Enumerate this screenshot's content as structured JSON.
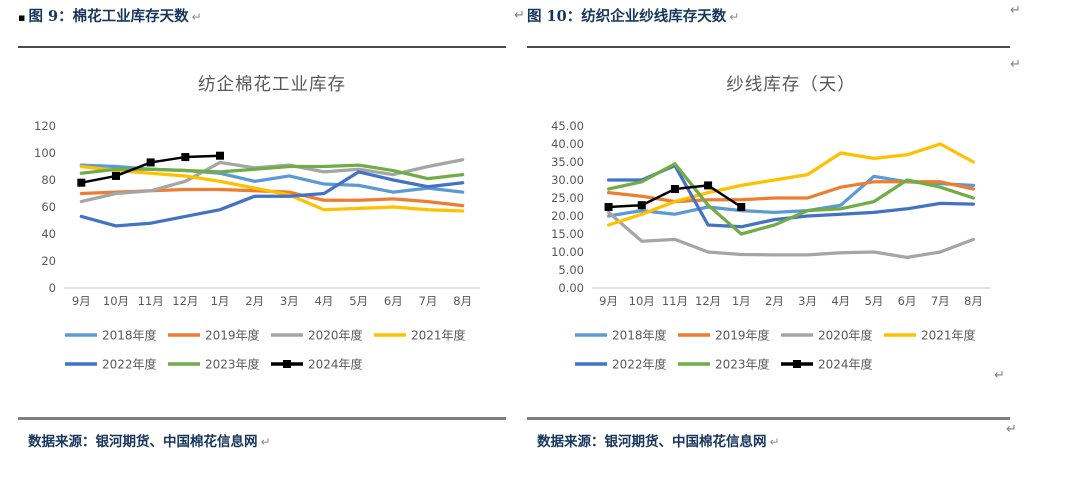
{
  "document": {
    "marks": {
      "inline_break": "↵",
      "margin_break": "↵"
    },
    "colors": {
      "caption_text": "#17365D",
      "chart_text": "#595959",
      "axis_line": "#BFBFBF",
      "rule_top": "#4a4a4a",
      "rule_bottom": "#7f7f7f"
    },
    "panels": [
      {
        "id": "figure-9",
        "bullet": "▪",
        "caption": "图 9：棉花工业库存天数",
        "source": "数据来源：银河期货、中国棉花信息网"
      },
      {
        "id": "figure-10",
        "caption": "图 10：纺织企业纱线库存天数",
        "source": "数据来源：银河期货、中国棉花信息网"
      }
    ]
  },
  "chart_data": [
    {
      "type": "line",
      "title": "纺企棉花工业库存",
      "xlabel": "",
      "ylabel": "",
      "categories": [
        "9月",
        "10月",
        "11月",
        "12月",
        "1月",
        "2月",
        "3月",
        "4月",
        "5月",
        "6月",
        "7月",
        "8月"
      ],
      "ylim": [
        0,
        120
      ],
      "yticks": [
        0,
        20,
        40,
        60,
        80,
        100,
        120
      ],
      "ytick_decimals": 0,
      "grid": false,
      "legend_position": "bottom",
      "text_color": "#595959",
      "series": [
        {
          "name": "2018年度",
          "color": "#5B9BD5",
          "values": [
            91,
            90,
            88,
            87,
            85,
            79,
            83,
            77,
            76,
            71,
            74,
            71
          ]
        },
        {
          "name": "2019年度",
          "color": "#ED7D31",
          "values": [
            70,
            71,
            72,
            73,
            73,
            72,
            71,
            65,
            65,
            66,
            64,
            61
          ]
        },
        {
          "name": "2020年度",
          "color": "#A5A5A5",
          "values": [
            64,
            70,
            72,
            79,
            93,
            89,
            91,
            86,
            88,
            84,
            90,
            95
          ]
        },
        {
          "name": "2021年度",
          "color": "#FFC000",
          "values": [
            90,
            87,
            85,
            83,
            79,
            74,
            69,
            58,
            59,
            60,
            58,
            57
          ]
        },
        {
          "name": "2022年度",
          "color": "#4472C4",
          "values": [
            53,
            46,
            48,
            53,
            58,
            68,
            68,
            70,
            86,
            80,
            75,
            78
          ]
        },
        {
          "name": "2023年度",
          "color": "#70AD47",
          "values": [
            85,
            88,
            88,
            87,
            86,
            88,
            90,
            90,
            91,
            87,
            81,
            84
          ]
        },
        {
          "name": "2024年度",
          "color": "#000000",
          "marker": "square",
          "values": [
            78,
            83,
            93,
            97,
            98
          ]
        }
      ]
    },
    {
      "type": "line",
      "title": "纱线库存（天）",
      "xlabel": "",
      "ylabel": "",
      "categories": [
        "9月",
        "10月",
        "11月",
        "12月",
        "1月",
        "2月",
        "3月",
        "4月",
        "5月",
        "6月",
        "7月",
        "8月"
      ],
      "ylim": [
        0,
        45
      ],
      "yticks": [
        0,
        5,
        10,
        15,
        20,
        25,
        30,
        35,
        40,
        45
      ],
      "ytick_decimals": 2,
      "grid": false,
      "legend_position": "bottom",
      "text_color": "#595959",
      "series": [
        {
          "name": "2018年度",
          "color": "#5B9BD5",
          "values": [
            20,
            21.5,
            20.5,
            22.5,
            21.5,
            21,
            21.5,
            23,
            31,
            29.5,
            29,
            28.5
          ]
        },
        {
          "name": "2019年度",
          "color": "#ED7D31",
          "values": [
            26.5,
            25.5,
            24,
            24.5,
            24.5,
            25,
            25,
            28,
            29.5,
            29.5,
            29.5,
            27.5
          ]
        },
        {
          "name": "2020年度",
          "color": "#A5A5A5",
          "values": [
            21,
            13,
            13.5,
            10,
            9.3,
            9.2,
            9.2,
            9.8,
            10,
            8.5,
            10,
            13.5
          ]
        },
        {
          "name": "2021年度",
          "color": "#FFC000",
          "values": [
            17.5,
            20.5,
            24,
            26.5,
            28.5,
            30,
            31.5,
            37.5,
            36,
            37,
            40,
            35
          ]
        },
        {
          "name": "2022年度",
          "color": "#4472C4",
          "values": [
            30,
            30,
            34,
            17.5,
            17,
            19,
            20,
            20.5,
            21,
            22,
            23.5,
            23.3
          ]
        },
        {
          "name": "2023年度",
          "color": "#70AD47",
          "values": [
            27.5,
            29.5,
            34.5,
            23,
            15,
            17.5,
            21.5,
            22,
            24,
            30,
            28,
            25
          ]
        },
        {
          "name": "2024年度",
          "color": "#000000",
          "marker": "square",
          "values": [
            22.5,
            23,
            27.5,
            28.5,
            22.5
          ]
        }
      ]
    }
  ]
}
